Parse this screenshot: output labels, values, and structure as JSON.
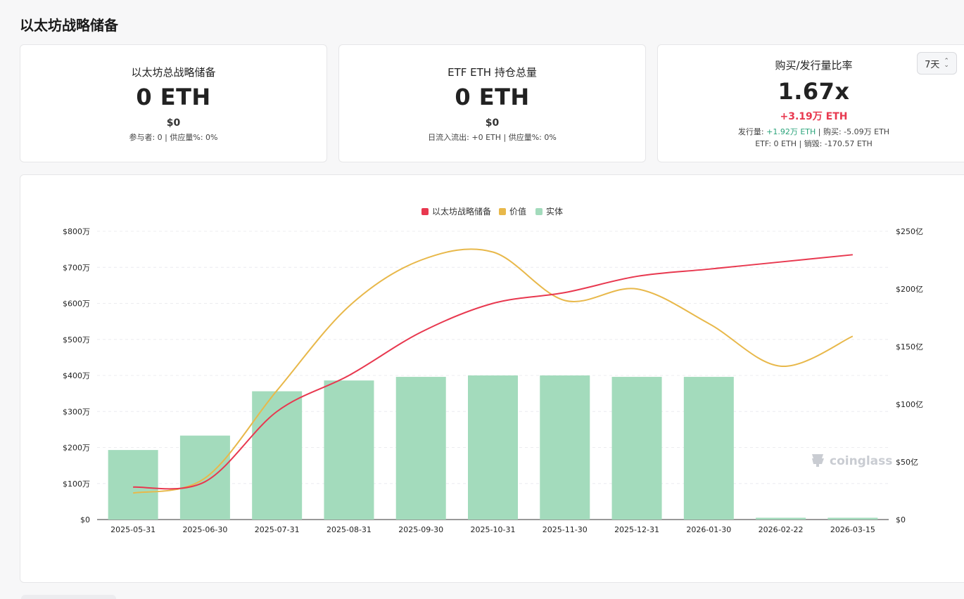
{
  "page": {
    "title": "以太坊战略储备"
  },
  "cards": [
    {
      "title": "以太坊总战略储备",
      "value": "0 ETH",
      "usd": "$0",
      "meta": "参与者: 0 |  供应量%: 0%"
    },
    {
      "title": "ETF ETH 持仓总量",
      "value": "0 ETH",
      "usd": "$0",
      "meta": "日流入流出: +0 ETH |  供应量%: 0%"
    }
  ],
  "ratio_card": {
    "title": "购买/发行量比率",
    "value": "1.67x",
    "delta": "+3.19万 ETH",
    "issue_label": "发行量: ",
    "issue_value": "+1.92万 ETH",
    "buy_text": " | 购买: -5.09万 ETH",
    "line2": "ETF: 0 ETH | 销毁: -170.57 ETH",
    "period": "7天"
  },
  "chart_data": {
    "type": "bar",
    "categories": [
      "2025-05-31",
      "2025-06-30",
      "2025-07-31",
      "2025-08-31",
      "2025-09-30",
      "2025-10-31",
      "2025-11-30",
      "2025-12-31",
      "2026-01-30",
      "2026-02-22",
      "2026-03-15"
    ],
    "series": [
      {
        "name": "以太坊战略储备",
        "type": "line",
        "axis": "left",
        "color": "#e8384f",
        "values": [
          900000,
          1050000,
          3000000,
          4000000,
          5200000,
          6000000,
          6300000,
          6750000,
          6950000,
          7150000,
          7350000
        ]
      },
      {
        "name": "价值",
        "type": "line",
        "axis": "right",
        "color": "#e8b84a",
        "values": [
          2300000000,
          3600000000,
          11200000000,
          18500000000,
          22500000000,
          23200000000,
          19000000000,
          20000000000,
          17000000000,
          13300000000,
          15900000000
        ]
      },
      {
        "name": "实体",
        "type": "bar",
        "axis": "left",
        "color": "#a3dbbc",
        "values": [
          1930000,
          2330000,
          3560000,
          3860000,
          3960000,
          4000000,
          4000000,
          3960000,
          3960000,
          50000,
          50000
        ]
      }
    ],
    "y_left": {
      "min": 0,
      "max": 8000000,
      "ticks": [
        "$0",
        "$100万",
        "$200万",
        "$300万",
        "$400万",
        "$500万",
        "$600万",
        "$700万",
        "$800万"
      ]
    },
    "y_right": {
      "min": 0,
      "max": 25000000000,
      "ticks": [
        "$0",
        "$50亿",
        "$100亿",
        "$150亿",
        "$200亿",
        "$250亿"
      ]
    },
    "legend_position": "top-center",
    "grid": true,
    "watermark": "coinglass"
  }
}
